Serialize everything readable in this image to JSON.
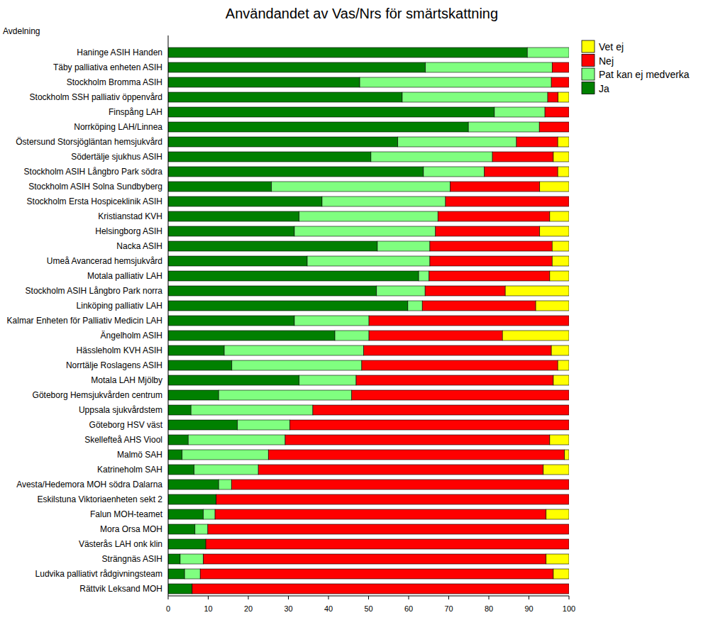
{
  "chart_data": {
    "type": "bar",
    "orientation": "horizontal",
    "stacked": true,
    "title": "Användandet av Vas/Nrs för smärtskattning",
    "y_label": "Avdelning",
    "legend": "right",
    "grid": false,
    "categories": [
      "Haninge ASIH Handen",
      "Täby palliativa enheten ASIH",
      "Stockholm Bromma ASIH",
      "Stockholm SSH palliativ öppenvård",
      "Finspång LAH",
      "Norrköping LAH/Linnea",
      "Östersund Storsjögläntan hemsjukvård",
      "Södertälje sjukhus ASIH",
      "Stockholm ASIH Långbro Park södra",
      "Stockholm  ASIH Solna Sundbyberg",
      "Stockholm Ersta Hospiceklinik ASIH",
      "Kristianstad KVH",
      "Helsingborg ASIH",
      "Nacka ASIH",
      "Umeå Avancerad hemsjukvård",
      "Motala palliativ LAH",
      "Stockholm ASIH Långbro Park norra",
      "Linköping palliativ LAH",
      "Kalmar Enheten för Palliativ Medicin LAH",
      "Ängelholm ASIH",
      "Hässleholm KVH ASIH",
      "Norrtälje Roslagens ASIH",
      "Motala LAH Mjölby",
      "Göteborg Hemsjukvården centrum",
      "Uppsala sjukvårdstem",
      "Göteborg HSV väst",
      "Skellefteå AHS Viool",
      "Malmö SAH",
      "Katrineholm SAH",
      "Avesta/Hedemora MOH södra Dalarna",
      "Eskilstuna Viktoriaenheten sekt 2",
      "Falun MOH-teamet",
      "Mora Orsa MOH",
      "Västerås LAH onk klin",
      "Strängnäs ASIH",
      "Ludvika palliativt rådgivningsteam",
      "Rättvik Leksand MOH"
    ],
    "series": [
      {
        "name": "Ja",
        "color": "#008000",
        "values": [
          89.6,
          64.2,
          47.8,
          58.4,
          81.4,
          74.9,
          57.3,
          50.6,
          63.7,
          25.8,
          38.4,
          32.7,
          31.5,
          52.2,
          34.7,
          62.5,
          52.0,
          59.8,
          31.5,
          41.6,
          14.0,
          15.9,
          32.7,
          12.6,
          5.7,
          17.3,
          5.0,
          3.5,
          6.5,
          12.6,
          12.0,
          8.8,
          6.7,
          9.4,
          3.0,
          4.1,
          6.0
        ]
      },
      {
        "name": "Pat kan ej medverka",
        "color": "#80FF80",
        "values": [
          10.4,
          31.6,
          47.8,
          36.3,
          12.6,
          17.7,
          29.6,
          30.3,
          15.2,
          44.6,
          30.8,
          34.6,
          35.2,
          13.1,
          30.6,
          2.6,
          12.1,
          3.6,
          18.6,
          8.5,
          34.8,
          32.4,
          14.2,
          33.2,
          30.4,
          13.1,
          24.2,
          21.5,
          16.0,
          3.2,
          0,
          2.9,
          3.2,
          0,
          5.8,
          3.9,
          0
        ]
      },
      {
        "name": "Nej",
        "color": "#FF0000",
        "values": [
          0,
          4.2,
          4.4,
          2.6,
          6.0,
          7.4,
          10.3,
          15.2,
          18.3,
          22.3,
          30.8,
          27.9,
          26.0,
          30.5,
          30.5,
          30.1,
          20.0,
          28.3,
          49.9,
          33.3,
          46.8,
          48.9,
          49.2,
          54.2,
          63.9,
          69.6,
          66.0,
          73.9,
          71.1,
          84.2,
          88.0,
          82.6,
          90.1,
          90.6,
          85.5,
          88.1,
          94.0
        ]
      },
      {
        "name": "Vet ej",
        "color": "#FFFF00",
        "values": [
          0,
          0,
          0,
          2.7,
          0,
          0,
          2.8,
          3.9,
          2.8,
          7.3,
          0,
          4.8,
          7.3,
          4.2,
          4.2,
          4.8,
          15.9,
          8.3,
          0,
          16.6,
          4.4,
          2.8,
          3.9,
          0,
          0,
          0,
          4.8,
          1.1,
          6.4,
          0,
          0,
          5.7,
          0,
          0,
          5.7,
          3.9,
          0
        ]
      }
    ],
    "xlim": [
      0,
      100
    ],
    "xticks": [
      0,
      10,
      20,
      30,
      40,
      50,
      60,
      70,
      80,
      90,
      100
    ]
  }
}
